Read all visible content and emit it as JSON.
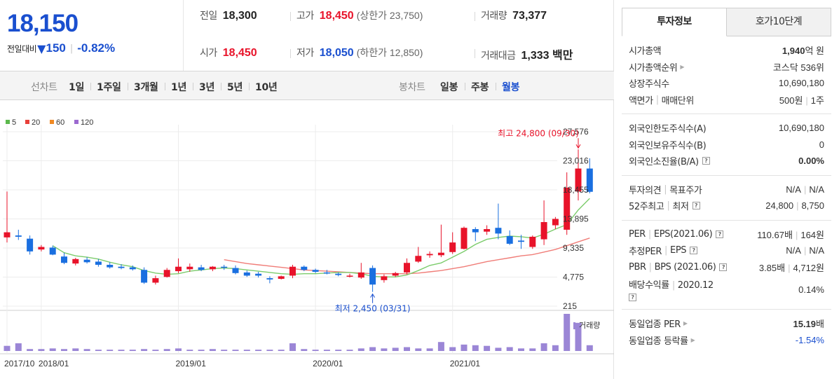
{
  "price": {
    "current": "18,150",
    "change_label": "전일대비",
    "change_dir_icon": "down-triangle",
    "change_amount": "150",
    "change_percent": "-0.82%"
  },
  "quotes": {
    "prev_close_label": "전일",
    "prev_close": "18,300",
    "high_label": "고가",
    "high": "18,450",
    "high_limit": "(상한가 23,750)",
    "volume_label": "거래량",
    "volume": "73,377",
    "open_label": "시가",
    "open": "18,450",
    "low_label": "저가",
    "low": "18,050",
    "low_limit": "(하한가 12,850)",
    "turnover_label": "거래대금",
    "turnover": "1,333 백만"
  },
  "period_bar": {
    "line_label": "선차트",
    "line_options": [
      "1일",
      "1주일",
      "3개월",
      "1년",
      "3년",
      "5년",
      "10년"
    ],
    "candle_label": "봉차트",
    "candle_options": [
      "일봉",
      "주봉",
      "월봉"
    ],
    "active_candle": "월봉"
  },
  "chart_data": {
    "type": "candlestick",
    "interval": "monthly",
    "legend": [
      {
        "name": "5",
        "color": "#5bb84c"
      },
      {
        "name": "20",
        "color": "#e8403a"
      },
      {
        "name": "60",
        "color": "#f08a24"
      },
      {
        "name": "120",
        "color": "#9c6ad0"
      }
    ],
    "y_ticks": [
      "27,576",
      "23,016",
      "18,455",
      "13,895",
      "9,335",
      "4,775",
      "215"
    ],
    "ylim": [
      215,
      27576
    ],
    "x_ticks": [
      "2017/10",
      "2018/01",
      "2019/01",
      "2020/01",
      "2021/01"
    ],
    "high_annotation": "최고 24,800 (09/30)",
    "low_annotation": "최저 2,450 (03/31)",
    "volume_label": "거래량",
    "up_color": "#e8132a",
    "down_color": "#1a6fe0",
    "candles": [
      {
        "o": 11000,
        "h": 18200,
        "l": 10200,
        "c": 11800
      },
      {
        "o": 11300,
        "h": 12200,
        "l": 10600,
        "c": 11100
      },
      {
        "o": 10800,
        "h": 11300,
        "l": 8300,
        "c": 8800
      },
      {
        "o": 9100,
        "h": 9800,
        "l": 8800,
        "c": 9500
      },
      {
        "o": 9400,
        "h": 9700,
        "l": 8200,
        "c": 8300
      },
      {
        "o": 8000,
        "h": 8600,
        "l": 6800,
        "c": 7000
      },
      {
        "o": 6900,
        "h": 7800,
        "l": 6600,
        "c": 7600
      },
      {
        "o": 7500,
        "h": 7900,
        "l": 6900,
        "c": 7100
      },
      {
        "o": 7200,
        "h": 7600,
        "l": 6400,
        "c": 6700
      },
      {
        "o": 6700,
        "h": 7100,
        "l": 6100,
        "c": 6300
      },
      {
        "o": 6400,
        "h": 6800,
        "l": 6000,
        "c": 6200
      },
      {
        "o": 6300,
        "h": 6600,
        "l": 5800,
        "c": 6000
      },
      {
        "o": 5900,
        "h": 6300,
        "l": 3700,
        "c": 3900
      },
      {
        "o": 3900,
        "h": 5000,
        "l": 3600,
        "c": 4600
      },
      {
        "o": 4800,
        "h": 6200,
        "l": 4700,
        "c": 5900
      },
      {
        "o": 5700,
        "h": 7700,
        "l": 5400,
        "c": 6400
      },
      {
        "o": 6000,
        "h": 6900,
        "l": 5600,
        "c": 6400
      },
      {
        "o": 6300,
        "h": 6700,
        "l": 5700,
        "c": 5900
      },
      {
        "o": 6000,
        "h": 6500,
        "l": 5700,
        "c": 6400
      },
      {
        "o": 6400,
        "h": 6700,
        "l": 5900,
        "c": 6300
      },
      {
        "o": 6200,
        "h": 6600,
        "l": 5200,
        "c": 5400
      },
      {
        "o": 5500,
        "h": 5800,
        "l": 4800,
        "c": 5000
      },
      {
        "o": 5300,
        "h": 5600,
        "l": 4700,
        "c": 5000
      },
      {
        "o": 4600,
        "h": 4900,
        "l": 3800,
        "c": 4400
      },
      {
        "o": 4500,
        "h": 5000,
        "l": 4400,
        "c": 4900
      },
      {
        "o": 5000,
        "h": 6700,
        "l": 4600,
        "c": 6400
      },
      {
        "o": 6400,
        "h": 6600,
        "l": 5700,
        "c": 5900
      },
      {
        "o": 5900,
        "h": 6100,
        "l": 5400,
        "c": 5600
      },
      {
        "o": 5500,
        "h": 5900,
        "l": 5200,
        "c": 5400
      },
      {
        "o": 5300,
        "h": 5500,
        "l": 4900,
        "c": 5100
      },
      {
        "o": 4900,
        "h": 5300,
        "l": 4700,
        "c": 5000
      },
      {
        "o": 4700,
        "h": 7000,
        "l": 4500,
        "c": 5500
      },
      {
        "o": 6200,
        "h": 6600,
        "l": 2450,
        "c": 3600
      },
      {
        "o": 4300,
        "h": 5200,
        "l": 3900,
        "c": 4900
      },
      {
        "o": 5000,
        "h": 5600,
        "l": 4800,
        "c": 5400
      },
      {
        "o": 5500,
        "h": 7700,
        "l": 5200,
        "c": 7000
      },
      {
        "o": 7200,
        "h": 9500,
        "l": 7000,
        "c": 8100
      },
      {
        "o": 8200,
        "h": 8800,
        "l": 7800,
        "c": 8400
      },
      {
        "o": 8200,
        "h": 13000,
        "l": 7900,
        "c": 8600
      },
      {
        "o": 8700,
        "h": 11800,
        "l": 8400,
        "c": 10200
      },
      {
        "o": 9200,
        "h": 12700,
        "l": 9100,
        "c": 12500
      },
      {
        "o": 12300,
        "h": 12600,
        "l": 10400,
        "c": 11800
      },
      {
        "o": 11900,
        "h": 12900,
        "l": 11400,
        "c": 12300
      },
      {
        "o": 12500,
        "h": 16300,
        "l": 10700,
        "c": 11600
      },
      {
        "o": 11200,
        "h": 12100,
        "l": 9800,
        "c": 10000
      },
      {
        "o": 10500,
        "h": 11400,
        "l": 9200,
        "c": 10300
      },
      {
        "o": 9500,
        "h": 11300,
        "l": 9200,
        "c": 11100
      },
      {
        "o": 10700,
        "h": 16800,
        "l": 9800,
        "c": 13400
      },
      {
        "o": 12900,
        "h": 14200,
        "l": 12300,
        "c": 13900
      },
      {
        "o": 12200,
        "h": 21200,
        "l": 11400,
        "c": 18800
      },
      {
        "o": 18200,
        "h": 24800,
        "l": 16800,
        "c": 21800
      },
      {
        "o": 21800,
        "h": 23400,
        "l": 17900,
        "c": 18150
      }
    ],
    "volume": [
      8,
      12,
      3,
      3,
      4,
      3,
      4,
      3,
      2,
      2,
      2,
      2,
      3,
      2,
      3,
      4,
      2,
      2,
      3,
      2,
      2,
      2,
      2,
      2,
      2,
      12,
      3,
      2,
      2,
      2,
      2,
      4,
      6,
      4,
      5,
      6,
      4,
      4,
      14,
      6,
      10,
      9,
      8,
      5,
      6,
      4,
      4,
      12,
      9,
      58,
      44,
      9
    ],
    "ma5": [
      null,
      null,
      null,
      null,
      9700,
      8600,
      8100,
      7900,
      7600,
      7100,
      6700,
      6400,
      5800,
      5400,
      5200,
      5300,
      5700,
      5900,
      6100,
      6200,
      6100,
      5900,
      5700,
      5500,
      5300,
      5200,
      5300,
      5300,
      5400,
      5500,
      5500,
      5300,
      4900,
      4800,
      4800,
      5100,
      5800,
      6600,
      7000,
      7900,
      8800,
      9900,
      10700,
      11000,
      11200,
      11100,
      10900,
      11500,
      12300,
      13000,
      15300,
      17100
    ],
    "ma20": [
      null,
      null,
      null,
      null,
      null,
      null,
      null,
      null,
      null,
      null,
      null,
      null,
      null,
      null,
      null,
      null,
      null,
      null,
      null,
      7500,
      7200,
      6900,
      6700,
      6500,
      6300,
      6100,
      5900,
      5800,
      5700,
      5600,
      5500,
      5400,
      5300,
      5300,
      5300,
      5300,
      5400,
      5600,
      5800,
      6100,
      6400,
      6800,
      7200,
      7500,
      7800,
      8100,
      8300,
      8700,
      9100,
      9700,
      10300,
      10900
    ]
  },
  "side_panel": {
    "tabs": [
      "투자정보",
      "호가10단계"
    ],
    "group1": [
      {
        "label": "시가총액",
        "value_bold": "1,940",
        "value_rest": "억 원"
      },
      {
        "label": "시가총액순위",
        "arrow": true,
        "value_rest": "코스닥 536위"
      },
      {
        "label": "상장주식수",
        "value_rest": "10,690,180"
      },
      {
        "label_a": "액면가",
        "label_b": "매매단위",
        "value_a": "500원",
        "value_b": "1주"
      }
    ],
    "group2": [
      {
        "label": "외국인한도주식수(A)",
        "value": "10,690,180"
      },
      {
        "label": "외국인보유주식수(B)",
        "value": "0"
      },
      {
        "label": "외국인소진율(B/A)",
        "help": true,
        "value": "0.00%"
      }
    ],
    "group3": [
      {
        "label_a": "투자의견",
        "label_b": "목표주가",
        "value_a": "N/A",
        "value_b": "N/A"
      },
      {
        "label_a": "52주최고",
        "label_b": "최저",
        "value_a": "24,800",
        "value_b": "8,750"
      }
    ],
    "group4": [
      {
        "label_a": "PER",
        "label_b": "EPS(2021.06)",
        "value_a": "110.67배",
        "value_b": "164원"
      },
      {
        "label_a": "추정PER",
        "label_b": "EPS",
        "value_a": "N/A",
        "value_b": "N/A"
      },
      {
        "label_a": "PBR",
        "label_b": "BPS (2021.06)",
        "value_a": "3.85배",
        "value_b": "4,712원"
      },
      {
        "label_a": "배당수익률",
        "label_b": "2020.12",
        "value": "0.14%"
      }
    ],
    "group5": [
      {
        "label": "동일업종 PER",
        "value_bold": "15.19",
        "value_rest": "배"
      },
      {
        "label": "동일업종 등락률",
        "value": "-1.54%"
      }
    ]
  }
}
